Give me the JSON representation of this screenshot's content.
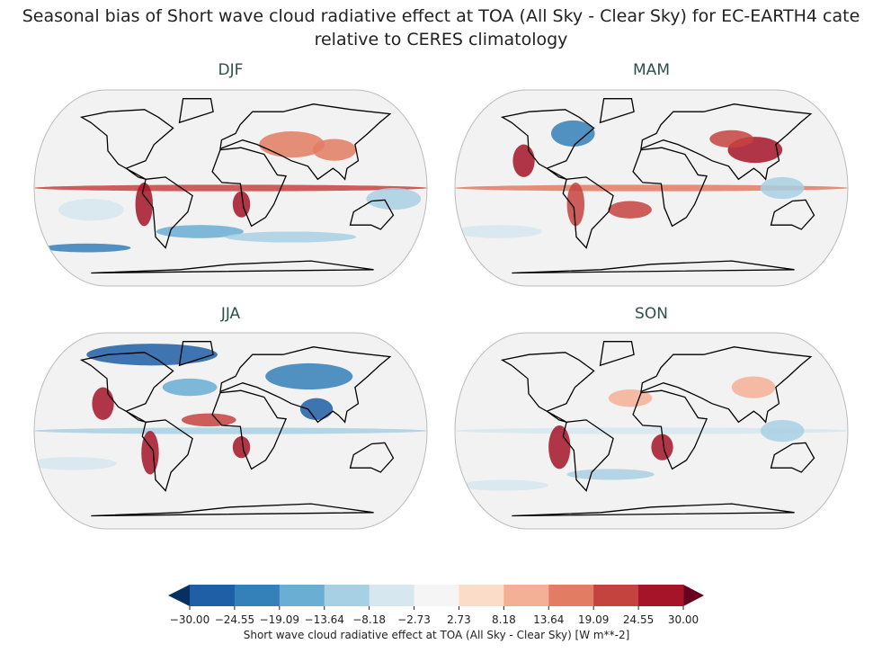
{
  "figure": {
    "title_line1": "Seasonal bias of Short wave cloud radiative effect at TOA (All Sky - Clear Sky) for EC-EARTH4 cate",
    "title_line2": "relative to CERES climatology",
    "panels": [
      {
        "title": "DJF"
      },
      {
        "title": "MAM"
      },
      {
        "title": "JJA"
      },
      {
        "title": "SON"
      }
    ],
    "projection": "Robinson",
    "colorbar": {
      "label": "Short wave cloud radiative effect at TOA (All Sky - Clear Sky) [W m**-2]",
      "ticks": [
        "−30.00",
        "−24.55",
        "−19.09",
        "−13.64",
        "−8.18",
        "−2.73",
        "2.73",
        "8.18",
        "13.64",
        "19.09",
        "24.55",
        "30.00"
      ],
      "range": [
        -30,
        30
      ],
      "extend": "both",
      "colors": [
        "#1f5fa5",
        "#3480b9",
        "#6aaed4",
        "#a8d0e4",
        "#d6e7f0",
        "#f5f5f5",
        "#fbdcc9",
        "#f4b096",
        "#e27d63",
        "#c5433f",
        "#a51429"
      ],
      "under_color": "#053061",
      "over_color": "#67001f",
      "colormap": "RdBu_r"
    }
  }
}
